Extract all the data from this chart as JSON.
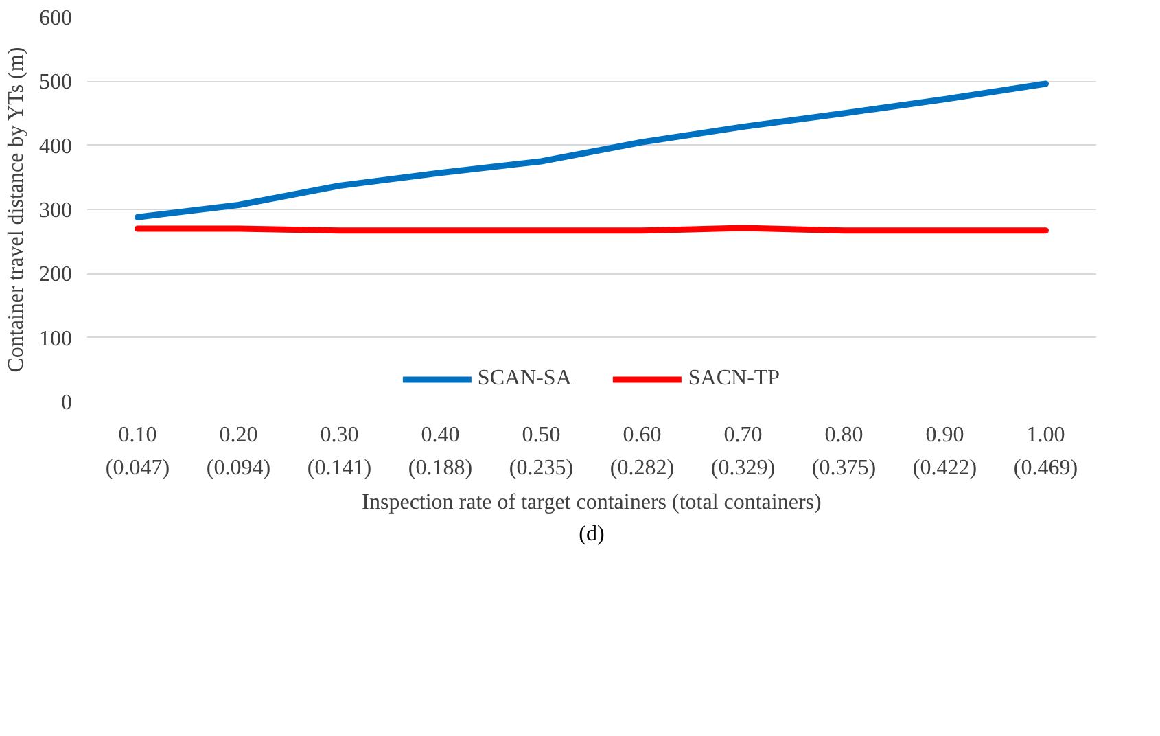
{
  "chart_data": {
    "type": "line",
    "xlabel": "Inspection rate of target containers (total containers)",
    "ylabel": "Container travel distance by YTs (m)",
    "categories": [
      "0.10\n(0.047)",
      "0.20\n(0.094)",
      "0.30\n(0.141)",
      "0.40\n(0.188)",
      "0.50\n(0.235)",
      "0.60\n(0.282)",
      "0.70\n(0.329)",
      "0.80\n(0.375)",
      "0.90\n(0.422)",
      "1.00\n(0.469)"
    ],
    "series": [
      {
        "name": "SCAN-SA",
        "color": "#0070c0",
        "values": [
          288,
          307,
          337,
          357,
          375,
          405,
          429,
          450,
          472,
          496
        ]
      },
      {
        "name": "SACN-TP",
        "color": "#ff0000",
        "values": [
          270,
          270,
          267,
          267,
          267,
          267,
          271,
          267,
          267,
          267
        ]
      }
    ],
    "ylim": [
      0,
      600
    ],
    "yticks": [
      0,
      100,
      200,
      300,
      400,
      500,
      600
    ],
    "grid": "y",
    "legend": "bottom",
    "marker": "none",
    "line_style": "solid",
    "annotations": [
      "(d)"
    ]
  }
}
